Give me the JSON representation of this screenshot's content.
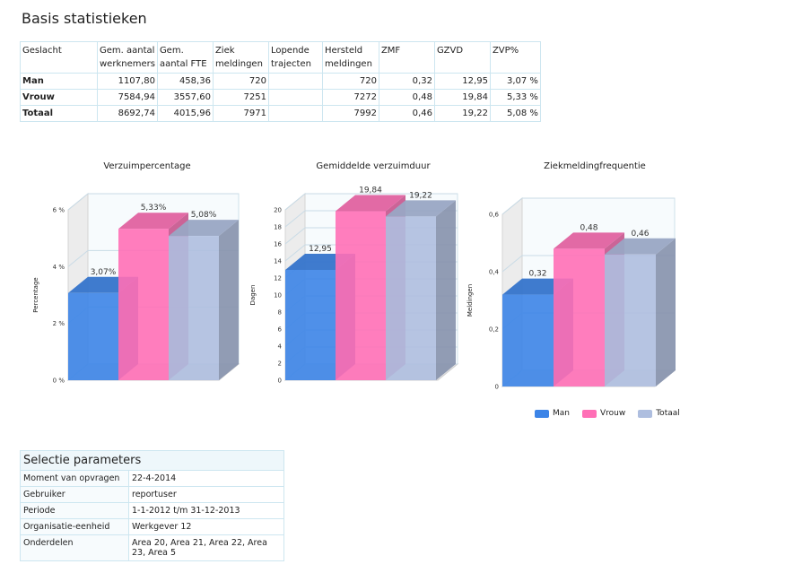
{
  "page": {
    "title": "Basis statistieken"
  },
  "stats_table": {
    "headers": [
      "Geslacht",
      "Gem. aantal werknemers",
      "Gem. aantal FTE",
      "Ziek meldingen",
      "Lopende trajecten",
      "Hersteld meldingen",
      "ZMF",
      "GZVD",
      "ZVP%"
    ],
    "rows": [
      [
        "Man",
        "1107,80",
        "458,36",
        "720",
        "",
        "720",
        "0,32",
        "12,95",
        "3,07 %"
      ],
      [
        "Vrouw",
        "7584,94",
        "3557,60",
        "7251",
        "",
        "7272",
        "0,48",
        "19,84",
        "5,33 %"
      ],
      [
        "Totaal",
        "8692,74",
        "4015,96",
        "7971",
        "",
        "7992",
        "0,46",
        "19,22",
        "5,08 %"
      ]
    ]
  },
  "colors": {
    "Man": "#3c84e7",
    "Vrouw": "#ff6fb6",
    "Totaal": "#aebedf"
  },
  "chart_data": [
    {
      "type": "bar",
      "title": "Verzuimpercentage",
      "ylabel": "Percentage",
      "categories": [
        "Man",
        "Vrouw",
        "Totaal"
      ],
      "values": [
        3.07,
        5.33,
        5.08
      ],
      "data_labels": [
        "3,07%",
        "5,33%",
        "5,08%"
      ],
      "ylim": [
        0,
        6
      ],
      "yticks": [
        0,
        2,
        4,
        6
      ],
      "ytick_labels": [
        "0 %",
        "2 %",
        "4 %",
        "6 %"
      ],
      "grid": true
    },
    {
      "type": "bar",
      "title": "Gemiddelde verzuimduur",
      "ylabel": "Dagen",
      "categories": [
        "Man",
        "Vrouw",
        "Totaal"
      ],
      "values": [
        12.95,
        19.84,
        19.22
      ],
      "data_labels": [
        "12,95",
        "19,84",
        "19,22"
      ],
      "ylim": [
        0,
        20
      ],
      "yticks": [
        0,
        2,
        4,
        6,
        8,
        10,
        12,
        14,
        16,
        18,
        20
      ],
      "ytick_labels": [
        "0",
        "2",
        "4",
        "6",
        "8",
        "10",
        "12",
        "14",
        "16",
        "18",
        "20"
      ],
      "grid": true
    },
    {
      "type": "bar",
      "title": "Ziekmeldingfrequentie",
      "ylabel": "Meldingen",
      "categories": [
        "Man",
        "Vrouw",
        "Totaal"
      ],
      "values": [
        0.32,
        0.48,
        0.46
      ],
      "data_labels": [
        "0,32",
        "0,48",
        "0,46"
      ],
      "ylim": [
        0,
        0.6
      ],
      "yticks": [
        0,
        0.2,
        0.4,
        0.6
      ],
      "ytick_labels": [
        "0",
        "0,2",
        "0,4",
        "0,6"
      ],
      "grid": true
    }
  ],
  "legend": {
    "placement": "bottom",
    "items": [
      "Man",
      "Vrouw",
      "Totaal"
    ]
  },
  "params": {
    "caption": "Selectie parameters",
    "rows": [
      {
        "key": "Moment van opvragen",
        "value": "22-4-2014"
      },
      {
        "key": "Gebruiker",
        "value": "reportuser"
      },
      {
        "key": "Periode",
        "value": "1-1-2012 t/m 31-12-2013"
      },
      {
        "key": "Organisatie-eenheid",
        "value": "Werkgever 12"
      },
      {
        "key": "Onderdelen",
        "value": "Area 20, Area 21, Area 22, Area 23, Area 5"
      }
    ]
  }
}
